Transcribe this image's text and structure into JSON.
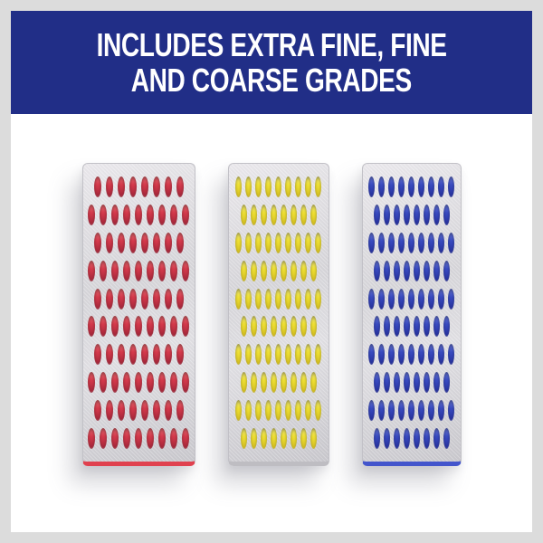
{
  "page": {
    "frame_color": "#dcdcdc",
    "content_bg": "#ffffff"
  },
  "banner": {
    "line1": "INCLUDES EXTRA FINE, FINE",
    "line2": "AND COARSE GRADES",
    "bg_color": "#212e87",
    "text_color": "#ffffff"
  },
  "plates": [
    {
      "name": "red-sharpening-plate",
      "dot_name": "red-abrasive-dot",
      "dot_light": "#ee6a72",
      "dot_base": "#d63a4c",
      "dot_dark": "#a02538",
      "bottom_edge_color": "#e0414f",
      "rows": [
        8,
        9,
        8,
        9,
        8,
        9,
        8,
        9,
        8,
        9
      ]
    },
    {
      "name": "yellow-sharpening-plate",
      "dot_name": "yellow-abrasive-dot",
      "dot_light": "#fbf37d",
      "dot_base": "#f2e335",
      "dot_dark": "#d3bd1e",
      "bottom_edge_color": "#bebdc2",
      "rows": [
        9,
        8,
        9,
        8,
        9,
        8,
        9,
        8,
        9,
        8
      ]
    },
    {
      "name": "blue-sharpening-plate",
      "dot_name": "blue-abrasive-dot",
      "dot_light": "#6c7ce2",
      "dot_base": "#3a4cc4",
      "dot_dark": "#252f9b",
      "bottom_edge_color": "#4355cc",
      "rows": [
        9,
        8,
        9,
        8,
        9,
        8,
        9,
        8,
        9,
        8
      ]
    }
  ]
}
